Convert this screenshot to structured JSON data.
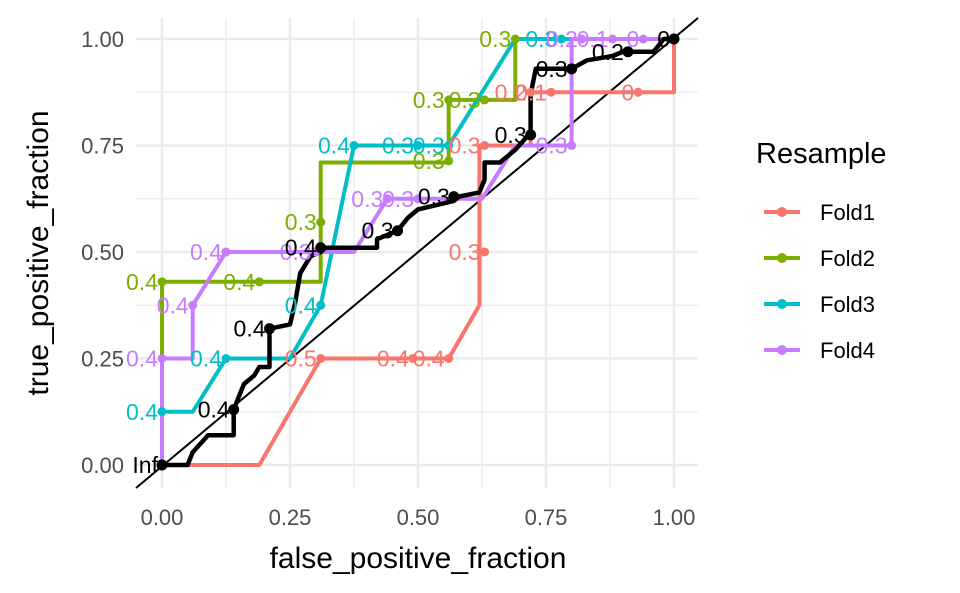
{
  "chart_data": {
    "type": "line",
    "xlabel": "false_positive_fraction",
    "ylabel": "true_positive_fraction",
    "xlim": [
      0,
      1
    ],
    "ylim": [
      0,
      1
    ],
    "x_ticks": [
      "0.00",
      "0.25",
      "0.50",
      "0.75",
      "1.00"
    ],
    "y_ticks": [
      "0.00",
      "0.25",
      "0.50",
      "0.75",
      "1.00"
    ],
    "grid": true,
    "diagonal_reference": true,
    "legend": {
      "title": "Resample",
      "position": "right"
    },
    "series": [
      {
        "name": "Fold1",
        "color": "#F8766D",
        "line": [
          [
            0,
            0
          ],
          [
            0.19,
            0
          ],
          [
            0.31,
            0.25
          ],
          [
            0.56,
            0.25
          ],
          [
            0.62,
            0.375
          ],
          [
            0.62,
            0.75
          ],
          [
            0.72,
            0.75
          ],
          [
            0.72,
            0.875
          ],
          [
            1,
            0.875
          ],
          [
            1,
            1
          ]
        ],
        "points": [
          {
            "x": 0.31,
            "y": 0.25,
            "label": "0.5"
          },
          {
            "x": 0.49,
            "y": 0.25,
            "label": "0.4"
          },
          {
            "x": 0.56,
            "y": 0.25,
            "label": "0.4"
          },
          {
            "x": 0.63,
            "y": 0.5,
            "label": "0.3"
          },
          {
            "x": 0.63,
            "y": 0.75,
            "label": "0.3"
          },
          {
            "x": 0.72,
            "y": 0.875,
            "label": "0.2"
          },
          {
            "x": 0.76,
            "y": 0.875,
            "label": "0.1"
          },
          {
            "x": 0.93,
            "y": 0.875,
            "label": "0"
          }
        ]
      },
      {
        "name": "Fold2",
        "color": "#7CAE00",
        "line": [
          [
            0,
            0
          ],
          [
            0,
            0.43
          ],
          [
            0.31,
            0.43
          ],
          [
            0.31,
            0.71
          ],
          [
            0.56,
            0.71
          ],
          [
            0.56,
            0.857
          ],
          [
            0.69,
            0.857
          ],
          [
            0.69,
            1
          ],
          [
            1,
            1
          ]
        ],
        "points": [
          {
            "x": 0,
            "y": 0.43,
            "label": "0.4"
          },
          {
            "x": 0.19,
            "y": 0.43,
            "label": "0.4"
          },
          {
            "x": 0.31,
            "y": 0.57,
            "label": "0.3"
          },
          {
            "x": 0.56,
            "y": 0.714,
            "label": "0.3"
          },
          {
            "x": 0.56,
            "y": 0.857,
            "label": "0.3"
          },
          {
            "x": 0.63,
            "y": 0.857,
            "label": "0.3"
          },
          {
            "x": 0.69,
            "y": 1,
            "label": "0.3"
          }
        ]
      },
      {
        "name": "Fold3",
        "color": "#00BFC4",
        "line": [
          [
            0,
            0
          ],
          [
            0,
            0.125
          ],
          [
            0.06,
            0.125
          ],
          [
            0.125,
            0.25
          ],
          [
            0.25,
            0.25
          ],
          [
            0.31,
            0.375
          ],
          [
            0.375,
            0.75
          ],
          [
            0.56,
            0.75
          ],
          [
            0.69,
            1
          ],
          [
            1,
            1
          ]
        ],
        "points": [
          {
            "x": 0,
            "y": 0.125,
            "label": "0.4"
          },
          {
            "x": 0.125,
            "y": 0.25,
            "label": "0.4"
          },
          {
            "x": 0.31,
            "y": 0.375,
            "label": "0.4"
          },
          {
            "x": 0.375,
            "y": 0.75,
            "label": "0.4"
          },
          {
            "x": 0.5,
            "y": 0.75,
            "label": "0.3"
          },
          {
            "x": 0.56,
            "y": 0.75,
            "label": "0.3"
          },
          {
            "x": 0.78,
            "y": 1,
            "label": "0.3"
          }
        ]
      },
      {
        "name": "Fold4",
        "color": "#C77CFF",
        "line": [
          [
            0,
            0
          ],
          [
            0,
            0.25
          ],
          [
            0.06,
            0.25
          ],
          [
            0.06,
            0.375
          ],
          [
            0.125,
            0.5
          ],
          [
            0.375,
            0.5
          ],
          [
            0.44,
            0.625
          ],
          [
            0.625,
            0.625
          ],
          [
            0.69,
            0.75
          ],
          [
            0.8,
            0.75
          ],
          [
            0.8,
            1
          ],
          [
            1,
            1
          ]
        ],
        "points": [
          {
            "x": 0,
            "y": 0.25,
            "label": "0.4"
          },
          {
            "x": 0.06,
            "y": 0.375,
            "label": "0.4"
          },
          {
            "x": 0.125,
            "y": 0.5,
            "label": "0.4"
          },
          {
            "x": 0.3,
            "y": 0.5,
            "label": "0.3"
          },
          {
            "x": 0.44,
            "y": 0.625,
            "label": "0.3"
          },
          {
            "x": 0.5,
            "y": 0.625,
            "label": "0.3"
          },
          {
            "x": 0.8,
            "y": 0.75,
            "label": "0.3"
          },
          {
            "x": 0.82,
            "y": 1,
            "label": "0.2"
          },
          {
            "x": 0.88,
            "y": 1,
            "label": "0.1"
          },
          {
            "x": 0.94,
            "y": 1,
            "label": "0"
          }
        ]
      },
      {
        "name": "",
        "color": "#000000",
        "line": [
          [
            0,
            0
          ],
          [
            0.05,
            0
          ],
          [
            0.06,
            0.03
          ],
          [
            0.09,
            0.07
          ],
          [
            0.14,
            0.07
          ],
          [
            0.14,
            0.13
          ],
          [
            0.15,
            0.16
          ],
          [
            0.16,
            0.19
          ],
          [
            0.18,
            0.21
          ],
          [
            0.19,
            0.23
          ],
          [
            0.21,
            0.23
          ],
          [
            0.21,
            0.32
          ],
          [
            0.25,
            0.33
          ],
          [
            0.26,
            0.38
          ],
          [
            0.27,
            0.45
          ],
          [
            0.29,
            0.49
          ],
          [
            0.31,
            0.5
          ],
          [
            0.31,
            0.51
          ],
          [
            0.42,
            0.51
          ],
          [
            0.42,
            0.53
          ],
          [
            0.46,
            0.55
          ],
          [
            0.48,
            0.58
          ],
          [
            0.5,
            0.6
          ],
          [
            0.57,
            0.62
          ],
          [
            0.58,
            0.63
          ],
          [
            0.62,
            0.64
          ],
          [
            0.63,
            0.67
          ],
          [
            0.63,
            0.71
          ],
          [
            0.66,
            0.71
          ],
          [
            0.69,
            0.74
          ],
          [
            0.72,
            0.78
          ],
          [
            0.72,
            0.87
          ],
          [
            0.73,
            0.93
          ],
          [
            0.8,
            0.93
          ],
          [
            0.83,
            0.95
          ],
          [
            0.88,
            0.96
          ],
          [
            0.9,
            0.97
          ],
          [
            0.96,
            0.97
          ],
          [
            0.98,
            1
          ],
          [
            1,
            1
          ]
        ],
        "points": [
          {
            "x": 0,
            "y": 0,
            "label": "Inf"
          },
          {
            "x": 0.14,
            "y": 0.13,
            "label": "0.4"
          },
          {
            "x": 0.21,
            "y": 0.32,
            "label": "0.4"
          },
          {
            "x": 0.31,
            "y": 0.51,
            "label": "0.4"
          },
          {
            "x": 0.46,
            "y": 0.55,
            "label": "0.3"
          },
          {
            "x": 0.57,
            "y": 0.63,
            "label": "0.3"
          },
          {
            "x": 0.72,
            "y": 0.775,
            "label": "0.3"
          },
          {
            "x": 0.8,
            "y": 0.93,
            "label": "0.3"
          },
          {
            "x": 0.91,
            "y": 0.97,
            "label": "0.2"
          },
          {
            "x": 1,
            "y": 1,
            "label": "0"
          }
        ]
      }
    ]
  }
}
